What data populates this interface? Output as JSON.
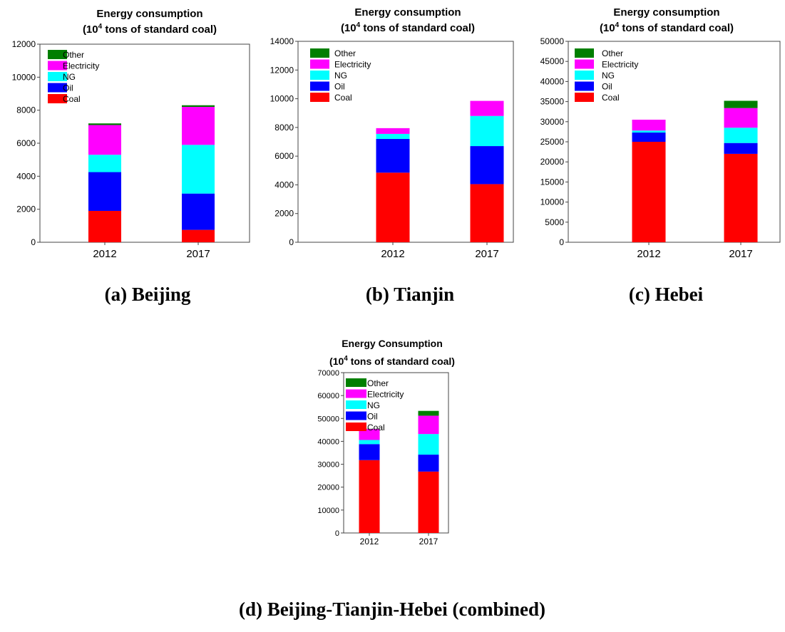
{
  "legend_order": [
    "Other",
    "Electricity",
    "NG",
    "Oil",
    "Coal"
  ],
  "colors": {
    "Coal": "#ff0000",
    "Oil": "#0000ff",
    "NG": "#00ffff",
    "Electricity": "#ff00ff",
    "Other": "#007f00"
  },
  "chart_data": [
    {
      "id": "beijing",
      "type": "bar",
      "stacked": true,
      "title_line1": "Energy consumption",
      "title_line2_pre": "(10",
      "title_line2_sup": "4",
      "title_line2_post": " tons of standard coal)",
      "caption": "(a) Beijing",
      "categories": [
        "2012",
        "2017"
      ],
      "ylim": [
        0,
        12000
      ],
      "yticks": [
        0,
        2000,
        4000,
        6000,
        8000,
        10000,
        12000
      ],
      "series": [
        {
          "name": "Coal",
          "values": [
            1900,
            750
          ]
        },
        {
          "name": "Oil",
          "values": [
            2350,
            2200
          ]
        },
        {
          "name": "NG",
          "values": [
            1050,
            2950
          ]
        },
        {
          "name": "Electricity",
          "values": [
            1800,
            2300
          ]
        },
        {
          "name": "Other",
          "values": [
            100,
            100
          ]
        }
      ],
      "legend": "top-left"
    },
    {
      "id": "tianjin",
      "type": "bar",
      "stacked": true,
      "title_line1": "Energy consumption",
      "title_line2_pre": "(10",
      "title_line2_sup": "4",
      "title_line2_post": " tons of standard coal)",
      "caption": "(b) Tianjin",
      "categories": [
        "2012",
        "2017"
      ],
      "ylim": [
        0,
        14000
      ],
      "yticks": [
        0,
        2000,
        4000,
        6000,
        8000,
        10000,
        12000,
        14000
      ],
      "series": [
        {
          "name": "Coal",
          "values": [
            4850,
            4050
          ]
        },
        {
          "name": "Oil",
          "values": [
            2350,
            2650
          ]
        },
        {
          "name": "NG",
          "values": [
            350,
            2100
          ]
        },
        {
          "name": "Electricity",
          "values": [
            400,
            1050
          ]
        },
        {
          "name": "Other",
          "values": [
            0,
            0
          ]
        }
      ],
      "legend": "top-left"
    },
    {
      "id": "hebei",
      "type": "bar",
      "stacked": true,
      "title_line1": "Energy consumption",
      "title_line2_pre": "(10",
      "title_line2_sup": "4",
      "title_line2_post": " tons of standard coal)",
      "caption": "(c) Hebei",
      "categories": [
        "2012",
        "2017"
      ],
      "ylim": [
        0,
        50000
      ],
      "yticks": [
        0,
        5000,
        10000,
        15000,
        20000,
        25000,
        30000,
        35000,
        40000,
        45000,
        50000
      ],
      "series": [
        {
          "name": "Coal",
          "values": [
            25000,
            22000
          ]
        },
        {
          "name": "Oil",
          "values": [
            2300,
            2700
          ]
        },
        {
          "name": "NG",
          "values": [
            500,
            3800
          ]
        },
        {
          "name": "Electricity",
          "values": [
            2700,
            4900
          ]
        },
        {
          "name": "Other",
          "values": [
            0,
            1800
          ]
        }
      ],
      "legend": "top-left"
    },
    {
      "id": "combined",
      "type": "bar",
      "stacked": true,
      "title_line1": "Energy Consumption",
      "title_line2_pre": "(10",
      "title_line2_sup": "4",
      "title_line2_post": " tons of standard coal)",
      "caption": "(d) Beijing-Tianjin-Hebei (combined)",
      "categories": [
        "2012",
        "2017"
      ],
      "ylim": [
        0,
        70000
      ],
      "yticks": [
        0,
        10000,
        20000,
        30000,
        40000,
        50000,
        60000,
        70000
      ],
      "series": [
        {
          "name": "Coal",
          "values": [
            31800,
            26800
          ]
        },
        {
          "name": "Oil",
          "values": [
            7000,
            7400
          ]
        },
        {
          "name": "NG",
          "values": [
            1800,
            9000
          ]
        },
        {
          "name": "Electricity",
          "values": [
            4800,
            8000
          ]
        },
        {
          "name": "Other",
          "values": [
            100,
            2100
          ]
        }
      ],
      "legend": "top-left"
    }
  ]
}
